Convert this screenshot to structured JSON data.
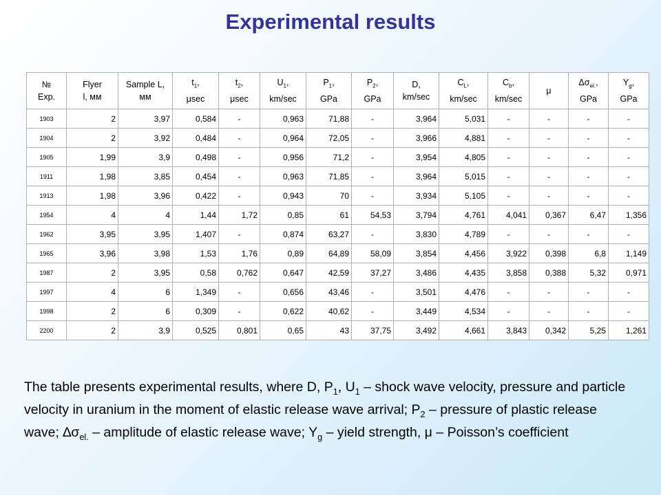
{
  "title": "Experimental results",
  "table": {
    "header": [
      [
        [
          "№"
        ],
        [
          "Exp."
        ]
      ],
      [
        [
          "Flyer"
        ],
        [
          "l, мм"
        ]
      ],
      [
        [
          "Sample L,"
        ],
        [
          "мм"
        ]
      ],
      [
        [
          "t",
          {
            "sub": "1"
          },
          ","
        ],
        [
          "μsec"
        ]
      ],
      [
        [
          "t",
          {
            "sub": "2"
          },
          ","
        ],
        [
          "μsec"
        ]
      ],
      [
        [
          "U",
          {
            "sub": "1"
          },
          ","
        ],
        [
          "km/sec"
        ]
      ],
      [
        [
          "P",
          {
            "sub": "1"
          },
          ","
        ],
        [
          "GPa"
        ]
      ],
      [
        [
          "P",
          {
            "sub": "2"
          },
          ","
        ],
        [
          "GPa"
        ]
      ],
      [
        [
          "D,"
        ],
        [
          "km/sec"
        ]
      ],
      [
        [
          "C",
          {
            "sub": "L"
          },
          ","
        ],
        [
          "km/sec"
        ]
      ],
      [
        [
          "C",
          {
            "sub": "b"
          },
          ","
        ],
        [
          "km/sec"
        ]
      ],
      [
        [
          "μ"
        ]
      ],
      [
        [
          "Δσ",
          {
            "sub": "el."
          },
          ","
        ],
        [
          "GPa"
        ]
      ],
      [
        [
          "Y",
          {
            "sub": "g"
          },
          ","
        ],
        [
          "GPa"
        ]
      ]
    ],
    "rows": [
      [
        "1903",
        "2",
        "3,97",
        "0,584",
        "-",
        "0,963",
        "71,88",
        "-",
        "3,964",
        "5,031",
        "-",
        "-",
        "-",
        "-"
      ],
      [
        "1904",
        "2",
        "3,92",
        "0,484",
        "-",
        "0,964",
        "72,05",
        "-",
        "3,966",
        "4,881",
        "-",
        "-",
        "-",
        "-"
      ],
      [
        "1905",
        "1,99",
        "3,9",
        "0,498",
        "-",
        "0,956",
        "71,2",
        "-",
        "3,954",
        "4,805",
        "-",
        "-",
        "-",
        "-"
      ],
      [
        "1911",
        "1,98",
        "3,85",
        "0,454",
        "-",
        "0,963",
        "71,85",
        "-",
        "3,964",
        "5,015",
        "-",
        "-",
        "-",
        "-"
      ],
      [
        "1913",
        "1,98",
        "3,96",
        "0,422",
        "-",
        "0,943",
        "70",
        "-",
        "3,934",
        "5,105",
        "-",
        "-",
        "-",
        "-"
      ],
      [
        "1954",
        "4",
        "4",
        "1,44",
        "1,72",
        "0,85",
        "61",
        "54,53",
        "3,794",
        "4,761",
        "4,041",
        "0,367",
        "6,47",
        "1,356"
      ],
      [
        "1962",
        "3,95",
        "3,95",
        "1,407",
        "-",
        "0,874",
        "63,27",
        "-",
        "3,830",
        "4,789",
        "-",
        "-",
        "-",
        "-"
      ],
      [
        "1965",
        "3,96",
        "3,98",
        "1,53",
        "1,76",
        "0,89",
        "64,89",
        "58,09",
        "3,854",
        "4,456",
        "3,922",
        "0,398",
        "6,8",
        "1,149"
      ],
      [
        "1987",
        "2",
        "3,95",
        "0,58",
        "0,762",
        "0,647",
        "42,59",
        "37,27",
        "3,486",
        "4,435",
        "3,858",
        "0,388",
        "5,32",
        "0,971"
      ],
      [
        "1997",
        "4",
        "6",
        "1,349",
        "-",
        "0,656",
        "43,46",
        "-",
        "3,501",
        "4,476",
        "-",
        "-",
        "-",
        "-"
      ],
      [
        "1998",
        "2",
        "6",
        "0,309",
        "-",
        "0,622",
        "40,62",
        "-",
        "3,449",
        "4,534",
        "-",
        "-",
        "-",
        "-"
      ],
      [
        "2200",
        "2",
        "3,9",
        "0,525",
        "0,801",
        "0,65",
        "43",
        "37,75",
        "3,492",
        "4,661",
        "3,843",
        "0,342",
        "5,25",
        "1,261"
      ]
    ]
  },
  "caption": [
    "The table presents experimental results, where D, P",
    {
      "sub": "1"
    },
    ", U",
    {
      "sub": "1"
    },
    " – shock wave velocity, pressure and particle velocity in uranium in the moment of elastic release wave arrival; P",
    {
      "sub": "2"
    },
    " – pressure of plastic release wave; ∆σ",
    {
      "sub": "el."
    },
    " – amplitude of elastic release wave; Y",
    {
      "sub": "g"
    },
    " – yield strength, μ – Poisson’s coefficient"
  ]
}
